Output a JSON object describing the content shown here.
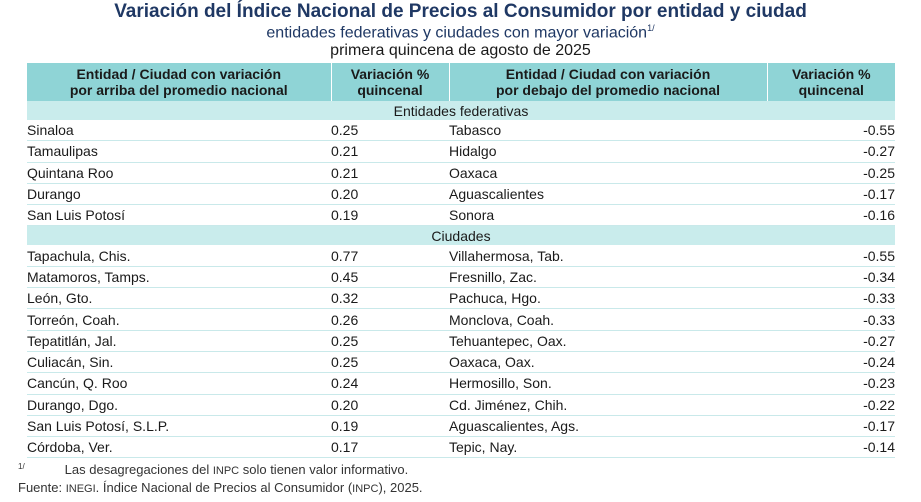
{
  "title": "Variación del Índice Nacional de Precios al Consumidor por entidad y ciudad",
  "subtitle1": "entidades federativas y ciudades con mayor variación",
  "subtitle1_note": "1/",
  "subtitle2": "primera quincena de agosto de 2025",
  "headers": {
    "col1": "Entidad / Ciudad con variación por arriba del promedio nacional",
    "col2": "Variación % quincenal",
    "col3": "Entidad / Ciudad con variación por debajo del promedio nacional",
    "col4": "Variación % quincenal"
  },
  "sections": {
    "entidades": "Entidades federativas",
    "ciudades": "Ciudades"
  },
  "entidades_rows": [
    {
      "up_name": "Sinaloa",
      "up_val": "0.25",
      "down_name": "Tabasco",
      "down_val": "-0.55"
    },
    {
      "up_name": "Tamaulipas",
      "up_val": "0.21",
      "down_name": "Hidalgo",
      "down_val": "-0.27"
    },
    {
      "up_name": "Quintana Roo",
      "up_val": "0.21",
      "down_name": "Oaxaca",
      "down_val": "-0.25"
    },
    {
      "up_name": "Durango",
      "up_val": "0.20",
      "down_name": "Aguascalientes",
      "down_val": "-0.17"
    },
    {
      "up_name": "San Luis Potosí",
      "up_val": "0.19",
      "down_name": "Sonora",
      "down_val": "-0.16"
    }
  ],
  "ciudades_rows": [
    {
      "up_name": "Tapachula, Chis.",
      "up_val": "0.77",
      "down_name": "Villahermosa, Tab.",
      "down_val": "-0.55"
    },
    {
      "up_name": "Matamoros, Tamps.",
      "up_val": "0.45",
      "down_name": "Fresnillo, Zac.",
      "down_val": "-0.34"
    },
    {
      "up_name": "León, Gto.",
      "up_val": "0.32",
      "down_name": "Pachuca, Hgo.",
      "down_val": "-0.33"
    },
    {
      "up_name": "Torreón, Coah.",
      "up_val": "0.26",
      "down_name": "Monclova, Coah.",
      "down_val": "-0.33"
    },
    {
      "up_name": "Tepatitlán, Jal.",
      "up_val": "0.25",
      "down_name": "Tehuantepec, Oax.",
      "down_val": "-0.27"
    },
    {
      "up_name": "Culiacán, Sin.",
      "up_val": "0.25",
      "down_name": "Oaxaca, Oax.",
      "down_val": "-0.24"
    },
    {
      "up_name": "Cancún, Q. Roo",
      "up_val": "0.24",
      "down_name": "Hermosillo, Son.",
      "down_val": "-0.23"
    },
    {
      "up_name": "Durango, Dgo.",
      "up_val": "0.20",
      "down_name": "Cd. Jiménez, Chih.",
      "down_val": "-0.22"
    },
    {
      "up_name": "San Luis Potosí, S.L.P.",
      "up_val": "0.19",
      "down_name": "Aguascalientes, Ags.",
      "down_val": "-0.17"
    },
    {
      "up_name": "Córdoba, Ver.",
      "up_val": "0.17",
      "down_name": "Tepic, Nay.",
      "down_val": "-0.14"
    }
  ],
  "footnote": {
    "mark": "1/",
    "text_a": "Las desagregaciones del ",
    "text_b": "INPC",
    "text_c": " solo tienen valor informativo."
  },
  "source": {
    "a": "Fuente: ",
    "b": "INEGI",
    "c": ". Índice Nacional de Precios al Consumidor (",
    "d": "INPC",
    "e": "), 2025."
  }
}
